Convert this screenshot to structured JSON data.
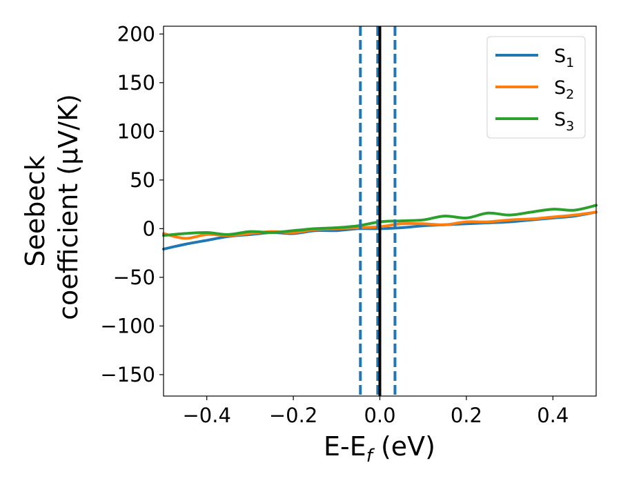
{
  "chart_data": {
    "type": "line",
    "xlabel_main": "E-E",
    "xlabel_sub": "f",
    "xlabel_unit": " (eV)",
    "ylabel_line1": "Seebeck",
    "ylabel_line2": "coefficient  (μV/K)",
    "xlim": [
      -0.5,
      0.5
    ],
    "ylim": [
      -172,
      208
    ],
    "xticks": [
      -0.4,
      -0.2,
      0.0,
      0.2,
      0.4
    ],
    "xtick_labels": [
      "−0.4",
      "−0.2",
      "0.0",
      "0.2",
      "0.4"
    ],
    "yticks": [
      -150,
      -100,
      -50,
      0,
      50,
      100,
      150,
      200
    ],
    "ytick_labels": [
      "−150",
      "−100",
      "−50",
      "0",
      "50",
      "100",
      "150",
      "200"
    ],
    "legend_position": "top-right",
    "grid": false,
    "vertical_lines": [
      {
        "x": -0.045,
        "style": "dashed",
        "color": "#1f77b4"
      },
      {
        "x": -0.005,
        "style": "dashed",
        "color": "#1f77b4"
      },
      {
        "x": 0.035,
        "style": "dashed",
        "color": "#1f77b4"
      },
      {
        "x": 0.0,
        "style": "solid",
        "color": "#000000"
      }
    ],
    "series": [
      {
        "name": "S",
        "subscript": "1",
        "color": "#1f77b4",
        "x": [
          -0.5,
          -0.45,
          -0.4,
          -0.35,
          -0.3,
          -0.25,
          -0.2,
          -0.15,
          -0.1,
          -0.05,
          0.0,
          0.05,
          0.1,
          0.15,
          0.2,
          0.25,
          0.3,
          0.35,
          0.4,
          0.45,
          0.5
        ],
        "y": [
          -21,
          -16,
          -12,
          -8,
          -6,
          -4,
          -5,
          -2,
          -2,
          0,
          0,
          1,
          3,
          4,
          5,
          6,
          7,
          9,
          11,
          13,
          17
        ]
      },
      {
        "name": "S",
        "subscript": "2",
        "color": "#ff7f0e",
        "x": [
          -0.5,
          -0.45,
          -0.4,
          -0.35,
          -0.3,
          -0.25,
          -0.2,
          -0.15,
          -0.1,
          -0.05,
          0.0,
          0.05,
          0.1,
          0.15,
          0.2,
          0.25,
          0.3,
          0.35,
          0.4,
          0.45,
          0.5
        ],
        "y": [
          -5,
          -10,
          -6,
          -7,
          -5,
          -3,
          -4,
          -1,
          0,
          1,
          2,
          5,
          5,
          4,
          7,
          7,
          9,
          10,
          12,
          14,
          17
        ]
      },
      {
        "name": "S",
        "subscript": "3",
        "color": "#2ca02c",
        "x": [
          -0.5,
          -0.45,
          -0.4,
          -0.35,
          -0.3,
          -0.25,
          -0.2,
          -0.15,
          -0.1,
          -0.05,
          0.0,
          0.05,
          0.1,
          0.15,
          0.2,
          0.25,
          0.3,
          0.35,
          0.4,
          0.45,
          0.5
        ],
        "y": [
          -7,
          -5,
          -4,
          -6,
          -3,
          -4,
          -2,
          0,
          1,
          3,
          7,
          8,
          9,
          13,
          11,
          16,
          14,
          17,
          20,
          19,
          24
        ]
      }
    ]
  }
}
